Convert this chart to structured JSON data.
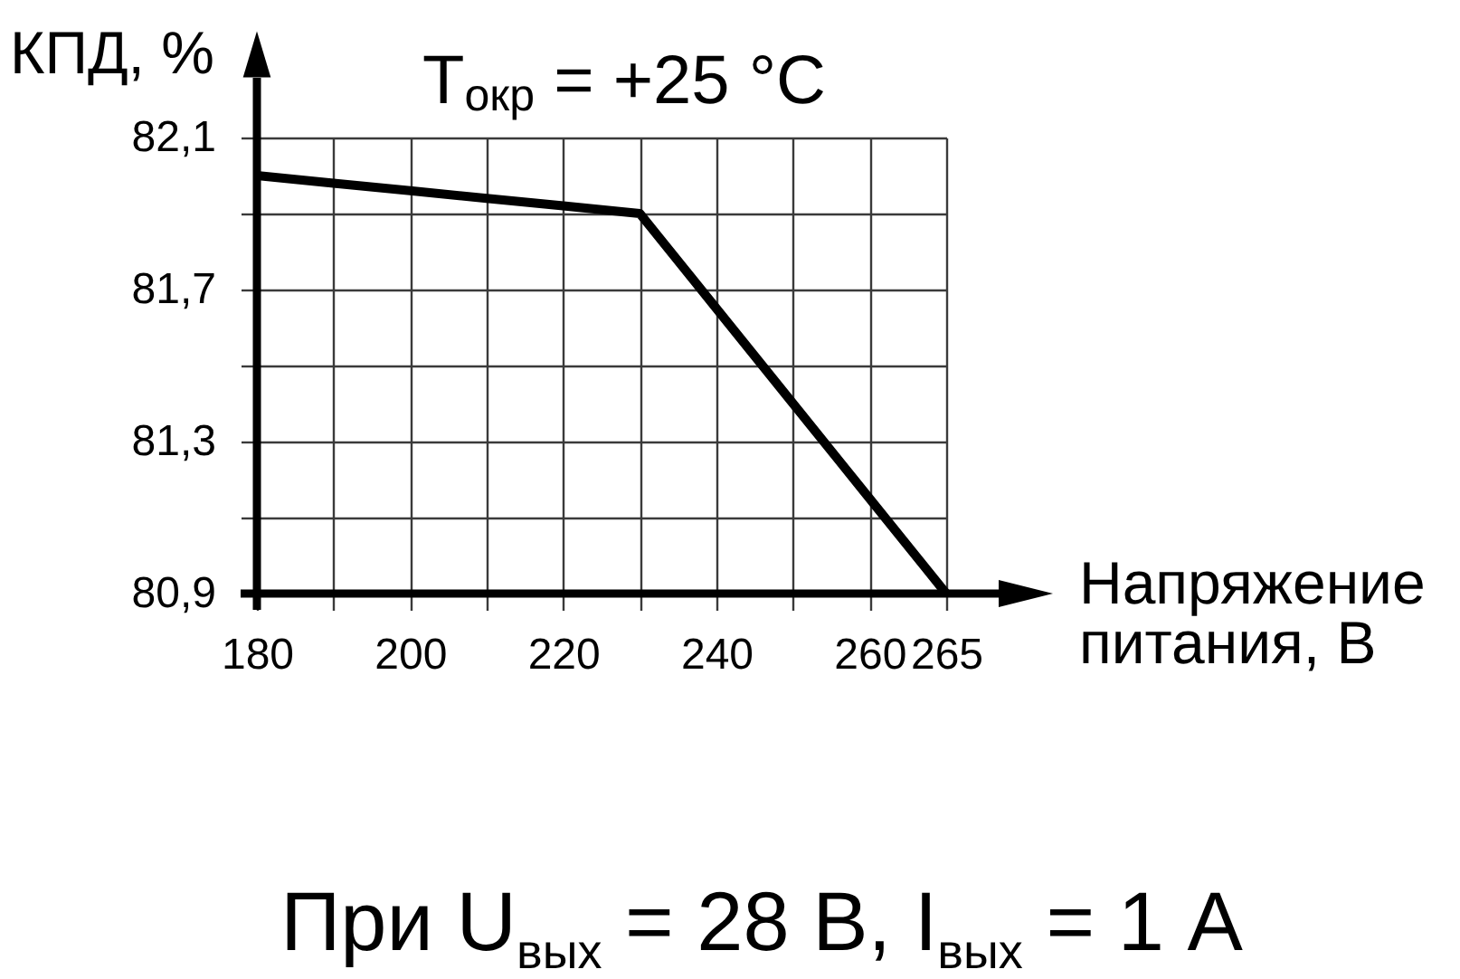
{
  "chart_data": {
    "type": "line",
    "title": "T$_{окр}$ = +25 °C",
    "xlabel": "Напряжение питания, В",
    "ylabel": "КПД, %",
    "categories": [
      "180",
      null,
      "200",
      null,
      "220",
      null,
      "240",
      null,
      "260",
      "265"
    ],
    "values": [
      82.0,
      81.98,
      81.96,
      81.94,
      81.92,
      81.9,
      81.65,
      81.4,
      81.15,
      80.9
    ],
    "color": "#000000",
    "line_style": "solid",
    "ylim": [
      80.9,
      82.1
    ],
    "yticks": [
      {
        "value": 80.9,
        "label": "80,9"
      },
      {
        "value": 81.1,
        "label": null
      },
      {
        "value": 81.3,
        "label": "81,3"
      },
      {
        "value": 81.5,
        "label": null
      },
      {
        "value": 81.7,
        "label": "81,7"
      },
      {
        "value": 81.9,
        "label": null
      },
      {
        "value": 82.1,
        "label": "82,1"
      }
    ],
    "grid": true,
    "annotations": [
      "При U$_{вых}$ = 28 В, I$_{вых}$ = 1 А"
    ]
  }
}
